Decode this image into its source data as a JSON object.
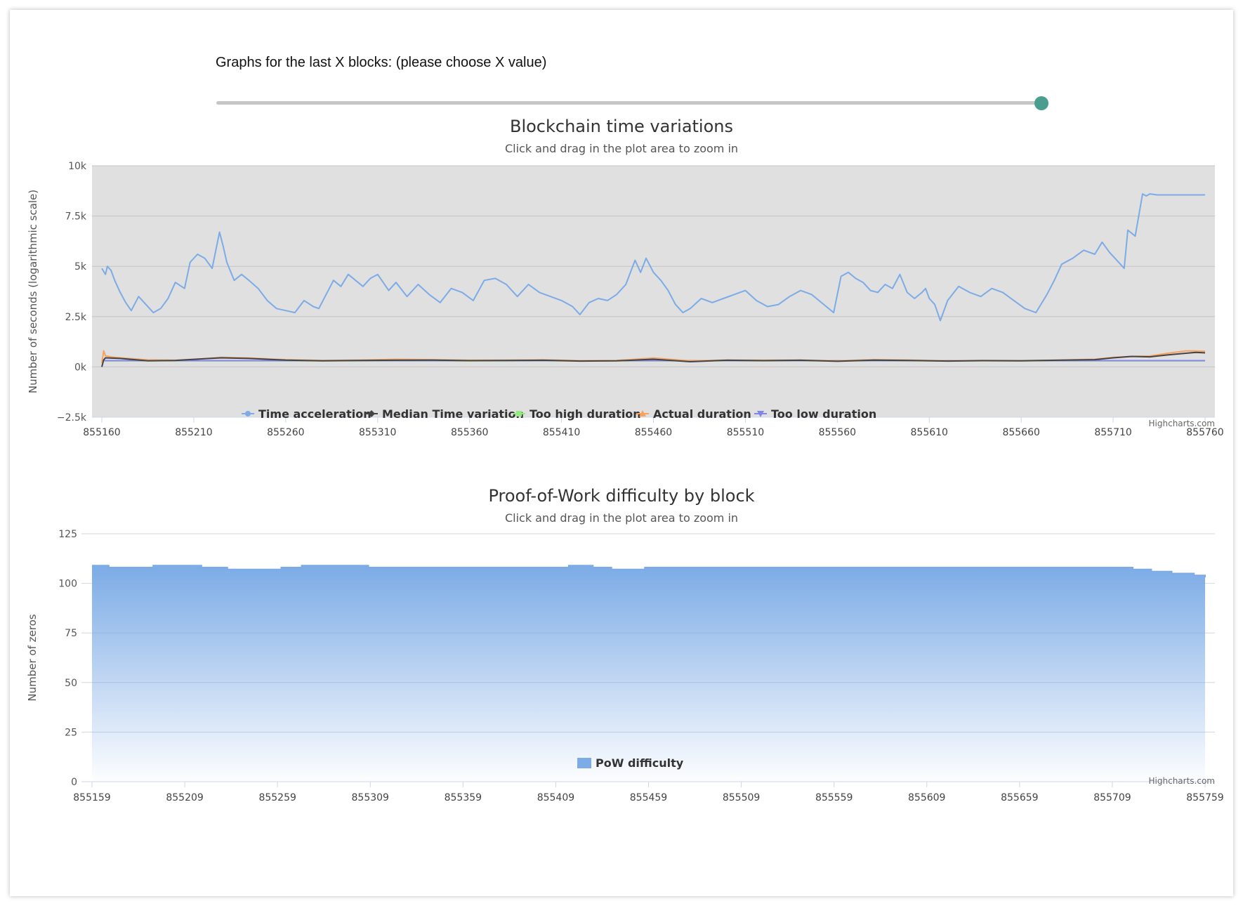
{
  "slider": {
    "label": "Graphs for the last X blocks: (please choose X value)",
    "value_fraction": 1.0
  },
  "credit": "Highcharts.com",
  "chart_data": [
    {
      "type": "line",
      "title": "Blockchain time variations",
      "subtitle": "Click and drag in the plot area to zoom in",
      "ylabel": "Number of seconds (logarithmic scale)",
      "xlabel": "",
      "ylim": [
        -2500,
        10000
      ],
      "xlim": [
        855160,
        855760
      ],
      "yticks": [
        -2500,
        0,
        2500,
        5000,
        7500,
        10000
      ],
      "ytick_labels": [
        "−2.5k",
        "0k",
        "2.5k",
        "5k",
        "7.5k",
        "10k"
      ],
      "xticks": [
        "855160",
        "855210",
        "855260",
        "855310",
        "855360",
        "855410",
        "855460",
        "855510",
        "855560",
        "855610",
        "855660",
        "855710",
        "855760"
      ],
      "grid": true,
      "legend_position": "bottom-center",
      "series": [
        {
          "name": "Time acceleration",
          "color": "#7cabe6",
          "marker": "circle",
          "x": [
            855160,
            855162,
            855163,
            855165,
            855167,
            855170,
            855173,
            855176,
            855180,
            855184,
            855188,
            855192,
            855196,
            855200,
            855205,
            855208,
            855212,
            855216,
            855220,
            855224,
            855226,
            855228,
            855232,
            855236,
            855240,
            855245,
            855250,
            855255,
            855260,
            855265,
            855270,
            855275,
            855278,
            855282,
            855286,
            855290,
            855294,
            855298,
            855302,
            855306,
            855310,
            855316,
            855320,
            855326,
            855332,
            855338,
            855344,
            855350,
            855356,
            855362,
            855368,
            855374,
            855380,
            855386,
            855392,
            855398,
            855404,
            855410,
            855416,
            855420,
            855425,
            855430,
            855435,
            855440,
            855445,
            855450,
            855453,
            855456,
            855460,
            855464,
            855468,
            855472,
            855476,
            855480,
            855486,
            855492,
            855498,
            855504,
            855510,
            855516,
            855522,
            855528,
            855534,
            855540,
            855546,
            855550,
            855554,
            855558,
            855562,
            855566,
            855570,
            855574,
            855578,
            855582,
            855586,
            855590,
            855594,
            855598,
            855602,
            855606,
            855608,
            855610,
            855613,
            855616,
            855620,
            855626,
            855632,
            855638,
            855644,
            855650,
            855656,
            855662,
            855668,
            855674,
            855678,
            855682,
            855688,
            855694,
            855700,
            855704,
            855708,
            855712,
            855716,
            855718,
            855722,
            855726,
            855728,
            855730,
            855734,
            855740,
            855746,
            855750,
            855754,
            855760
          ],
          "y": [
            4900,
            4600,
            5000,
            4800,
            4300,
            3700,
            3200,
            2800,
            3500,
            3100,
            2700,
            2900,
            3400,
            4200,
            3900,
            5200,
            5600,
            5400,
            4900,
            6700,
            6000,
            5200,
            4300,
            4600,
            4300,
            3900,
            3300,
            2900,
            2800,
            2700,
            3300,
            3000,
            2900,
            3600,
            4300,
            4000,
            4600,
            4300,
            4000,
            4400,
            4600,
            3800,
            4200,
            3500,
            4100,
            3600,
            3200,
            3900,
            3700,
            3300,
            4300,
            4400,
            4100,
            3500,
            4100,
            3700,
            3500,
            3300,
            3000,
            2600,
            3200,
            3400,
            3300,
            3600,
            4100,
            5300,
            4700,
            5400,
            4700,
            4300,
            3800,
            3100,
            2700,
            2900,
            3400,
            3200,
            3400,
            3600,
            3800,
            3300,
            3000,
            3100,
            3500,
            3800,
            3600,
            3300,
            3000,
            2700,
            4500,
            4700,
            4400,
            4200,
            3800,
            3700,
            4100,
            3900,
            4600,
            3700,
            3400,
            3700,
            3900,
            3400,
            3100,
            2300,
            3300,
            4000,
            3700,
            3500,
            3900,
            3700,
            3300,
            2900,
            2700,
            3600,
            4300,
            5100,
            5400,
            5800,
            5600,
            6200,
            5700,
            5300,
            4900,
            6800,
            6500,
            8600,
            8500,
            8600,
            8550,
            8550,
            8550,
            8550,
            8550,
            8550
          ]
        },
        {
          "name": "Median Time variation",
          "color": "#434348",
          "marker": "diamond",
          "x": [
            855160,
            855161,
            855162,
            855170,
            855185,
            855200,
            855215,
            855225,
            855240,
            855260,
            855280,
            855300,
            855320,
            855340,
            855360,
            855380,
            855400,
            855420,
            855440,
            855460,
            855480,
            855500,
            855520,
            855540,
            855560,
            855580,
            855600,
            855620,
            855640,
            855660,
            855680,
            855700,
            855710,
            855720,
            855730,
            855740,
            855750,
            855755,
            855760
          ],
          "y": [
            0,
            350,
            450,
            420,
            300,
            320,
            400,
            450,
            420,
            340,
            300,
            320,
            330,
            340,
            310,
            320,
            330,
            290,
            300,
            380,
            260,
            330,
            310,
            330,
            280,
            340,
            320,
            290,
            310,
            300,
            330,
            360,
            450,
            520,
            500,
            600,
            680,
            720,
            700
          ]
        },
        {
          "name": "Too high duration",
          "color": "#90ed7d",
          "marker": "square",
          "x": [
            855160,
            855760
          ],
          "y": [
            300,
            300
          ]
        },
        {
          "name": "Actual duration",
          "color": "#f7a35c",
          "marker": "triangle",
          "x": [
            855160,
            855161,
            855162,
            855165,
            855170,
            855185,
            855200,
            855215,
            855225,
            855240,
            855260,
            855280,
            855300,
            855320,
            855340,
            855360,
            855380,
            855400,
            855420,
            855440,
            855460,
            855480,
            855500,
            855520,
            855540,
            855560,
            855580,
            855600,
            855620,
            855640,
            855660,
            855680,
            855700,
            855710,
            855720,
            855730,
            855740,
            855750,
            855760
          ],
          "y": [
            200,
            800,
            550,
            500,
            450,
            350,
            330,
            400,
            480,
            440,
            360,
            320,
            340,
            380,
            360,
            330,
            340,
            350,
            310,
            320,
            440,
            300,
            340,
            330,
            340,
            300,
            360,
            340,
            300,
            320,
            310,
            340,
            380,
            470,
            520,
            540,
            680,
            800,
            780
          ]
        },
        {
          "name": "Too low duration",
          "color": "#8085e9",
          "marker": "triangle-down",
          "x": [
            855160,
            855760
          ],
          "y": [
            310,
            310
          ]
        }
      ]
    },
    {
      "type": "area",
      "title": "Proof-of-Work difficulty by block",
      "subtitle": "Click and drag in the plot area to zoom in",
      "ylabel": "Number of zeros",
      "xlabel": "",
      "ylim": [
        0,
        125
      ],
      "xlim": [
        855159,
        855759
      ],
      "yticks": [
        0,
        25,
        50,
        75,
        100,
        125
      ],
      "xticks": [
        "855159",
        "855209",
        "855259",
        "855309",
        "855359",
        "855409",
        "855459",
        "855509",
        "855559",
        "855609",
        "855659",
        "855709",
        "855759"
      ],
      "grid": true,
      "legend_position": "bottom-center",
      "series": [
        {
          "name": "PoW difficulty",
          "color": "#7cabe6",
          "steps": [
            [
              855159,
              109
            ],
            [
              855168,
              108
            ],
            [
              855192,
              109
            ],
            [
              855218,
              108
            ],
            [
              855232,
              107
            ],
            [
              855261,
              108
            ],
            [
              855272,
              109
            ],
            [
              855308,
              108
            ],
            [
              855416,
              109
            ],
            [
              855429,
              108
            ],
            [
              855439,
              107
            ],
            [
              855457,
              108
            ],
            [
              855720,
              107
            ],
            [
              855730,
              106
            ],
            [
              855741,
              105
            ],
            [
              855753,
              104
            ],
            [
              855759,
              103
            ]
          ]
        }
      ]
    }
  ]
}
